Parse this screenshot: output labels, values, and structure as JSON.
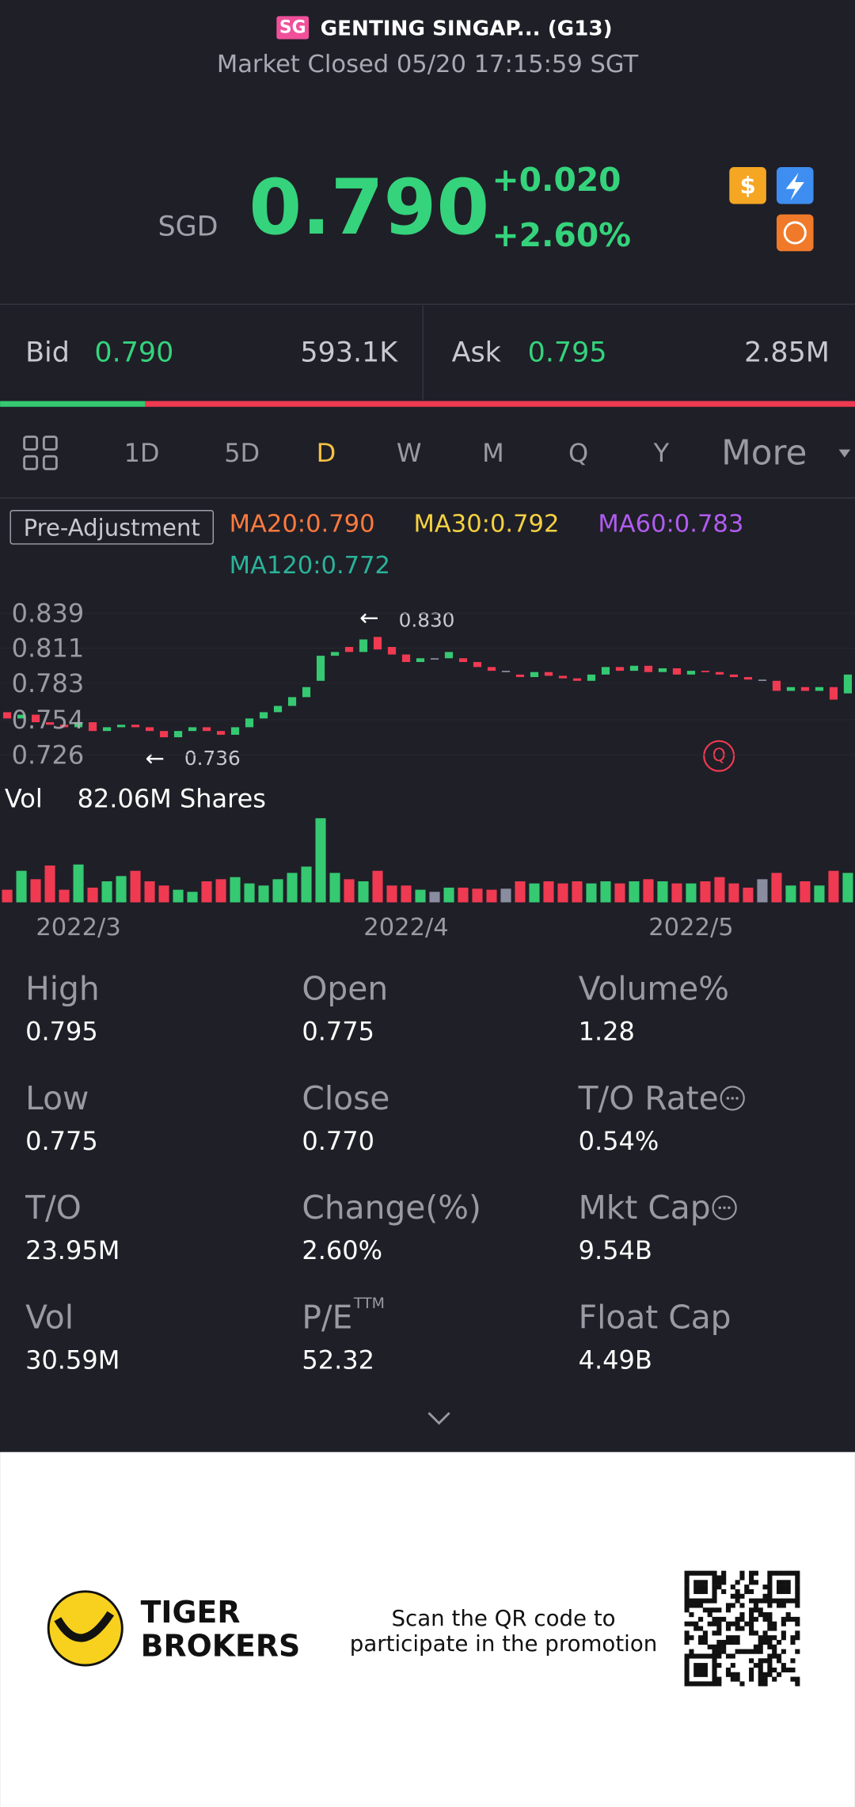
{
  "header": {
    "badge": "SG",
    "title": "GENTING SINGAP... (G13)",
    "status": "Market Closed 05/20 17:15:59 SGT"
  },
  "quote": {
    "currency": "SGD",
    "price": "0.790",
    "change": "+0.020",
    "change_pct": "+2.60%"
  },
  "bid": {
    "label": "Bid",
    "price": "0.790",
    "size": "593.1K"
  },
  "ask": {
    "label": "Ask",
    "price": "0.795",
    "size": "2.85M"
  },
  "bid_ask_bar": {
    "bid_share": 17
  },
  "tabs": {
    "items": [
      "1D",
      "5D",
      "D",
      "W",
      "M",
      "Q",
      "Y",
      "More"
    ],
    "active": 2
  },
  "indicators": {
    "adjustment": "Pre-Adjustment",
    "items": [
      {
        "label": "MA20:0.790",
        "color": "#ff7a3d"
      },
      {
        "label": "MA30:0.792",
        "color": "#f5d142"
      },
      {
        "label": "MA60:0.783",
        "color": "#b05cf0"
      },
      {
        "label": "MA120:0.772",
        "color": "#2ab39a"
      }
    ]
  },
  "chart_data": {
    "type": "candlestick",
    "ylim": [
      0.726,
      0.839
    ],
    "yticks": [
      0.839,
      0.811,
      0.783,
      0.754,
      0.726
    ],
    "max_label": "0.830",
    "min_label": "0.736",
    "marker": "Q",
    "up_color": "#35c972",
    "down_color": "#ef3a52",
    "flat_color": "#8a8ca0",
    "categories": [
      null,
      null,
      null,
      null,
      null,
      "2022/3",
      null,
      null,
      null,
      null,
      null,
      null,
      null,
      null,
      null,
      null,
      null,
      null,
      null,
      null,
      null,
      null,
      null,
      null,
      null,
      null,
      null,
      null,
      "2022/4",
      null,
      null,
      null,
      null,
      null,
      null,
      null,
      null,
      null,
      null,
      null,
      null,
      null,
      null,
      null,
      null,
      null,
      null,
      null,
      "2022/5",
      null,
      null,
      null,
      null,
      null,
      null,
      null,
      null,
      null,
      null,
      null
    ],
    "open": [
      0.76,
      0.755,
      0.758,
      0.752,
      0.75,
      0.748,
      0.752,
      0.745,
      0.748,
      0.75,
      0.748,
      0.745,
      0.74,
      0.745,
      0.748,
      0.745,
      0.742,
      0.748,
      0.755,
      0.76,
      0.765,
      0.772,
      0.785,
      0.805,
      0.812,
      0.808,
      0.82,
      0.812,
      0.806,
      0.8,
      0.803,
      0.803,
      0.803,
      0.8,
      0.796,
      0.793,
      0.79,
      0.788,
      0.792,
      0.789,
      0.787,
      0.785,
      0.79,
      0.796,
      0.793,
      0.797,
      0.792,
      0.795,
      0.79,
      0.793,
      0.792,
      0.79,
      0.788,
      0.786,
      0.785,
      0.777,
      0.78,
      0.777,
      0.78,
      0.775
    ],
    "close": [
      0.755,
      0.758,
      0.752,
      0.75,
      0.748,
      0.752,
      0.745,
      0.748,
      0.75,
      0.748,
      0.745,
      0.74,
      0.745,
      0.748,
      0.745,
      0.742,
      0.748,
      0.755,
      0.76,
      0.765,
      0.772,
      0.78,
      0.805,
      0.808,
      0.808,
      0.818,
      0.81,
      0.806,
      0.8,
      0.803,
      0.803,
      0.808,
      0.8,
      0.796,
      0.793,
      0.793,
      0.788,
      0.792,
      0.789,
      0.787,
      0.785,
      0.79,
      0.796,
      0.793,
      0.797,
      0.792,
      0.795,
      0.79,
      0.793,
      0.792,
      0.79,
      0.788,
      0.786,
      0.786,
      0.777,
      0.78,
      0.777,
      0.78,
      0.77,
      0.79
    ],
    "volume_label": "Vol",
    "volume_value": "82.06M Shares",
    "volume_ylim": [
      0,
      80
    ],
    "volume": [
      12,
      30,
      22,
      35,
      12,
      36,
      14,
      20,
      25,
      30,
      20,
      16,
      12,
      10,
      20,
      22,
      24,
      18,
      16,
      22,
      28,
      34,
      80,
      28,
      22,
      20,
      30,
      16,
      16,
      12,
      10,
      14,
      14,
      13,
      12,
      13,
      20,
      18,
      20,
      18,
      20,
      18,
      20,
      18,
      20,
      22,
      20,
      18,
      18,
      20,
      24,
      18,
      14,
      22,
      28,
      16,
      20,
      16,
      30,
      28
    ]
  },
  "stats": [
    {
      "label": "High",
      "value": "0.795"
    },
    {
      "label": "Open",
      "value": "0.775"
    },
    {
      "label": "Volume%",
      "value": "1.28"
    },
    {
      "label": "Low",
      "value": "0.775"
    },
    {
      "label": "Close",
      "value": "0.770"
    },
    {
      "label": "T/O Rate",
      "value": "0.54%",
      "info": true
    },
    {
      "label": "T/O",
      "value": "23.95M"
    },
    {
      "label": "Change(%)",
      "value": "2.60%"
    },
    {
      "label": "Mkt Cap",
      "value": "9.54B",
      "info": true
    },
    {
      "label": "Vol",
      "value": "30.59M"
    },
    {
      "label": "P/E",
      "sup": "TTM",
      "value": "52.32"
    },
    {
      "label": "Float Cap",
      "value": "4.49B"
    }
  ],
  "footer": {
    "brand": [
      "TIGER",
      "BROKERS"
    ],
    "promo": [
      "Scan the QR code to",
      "participate in the promotion"
    ]
  }
}
